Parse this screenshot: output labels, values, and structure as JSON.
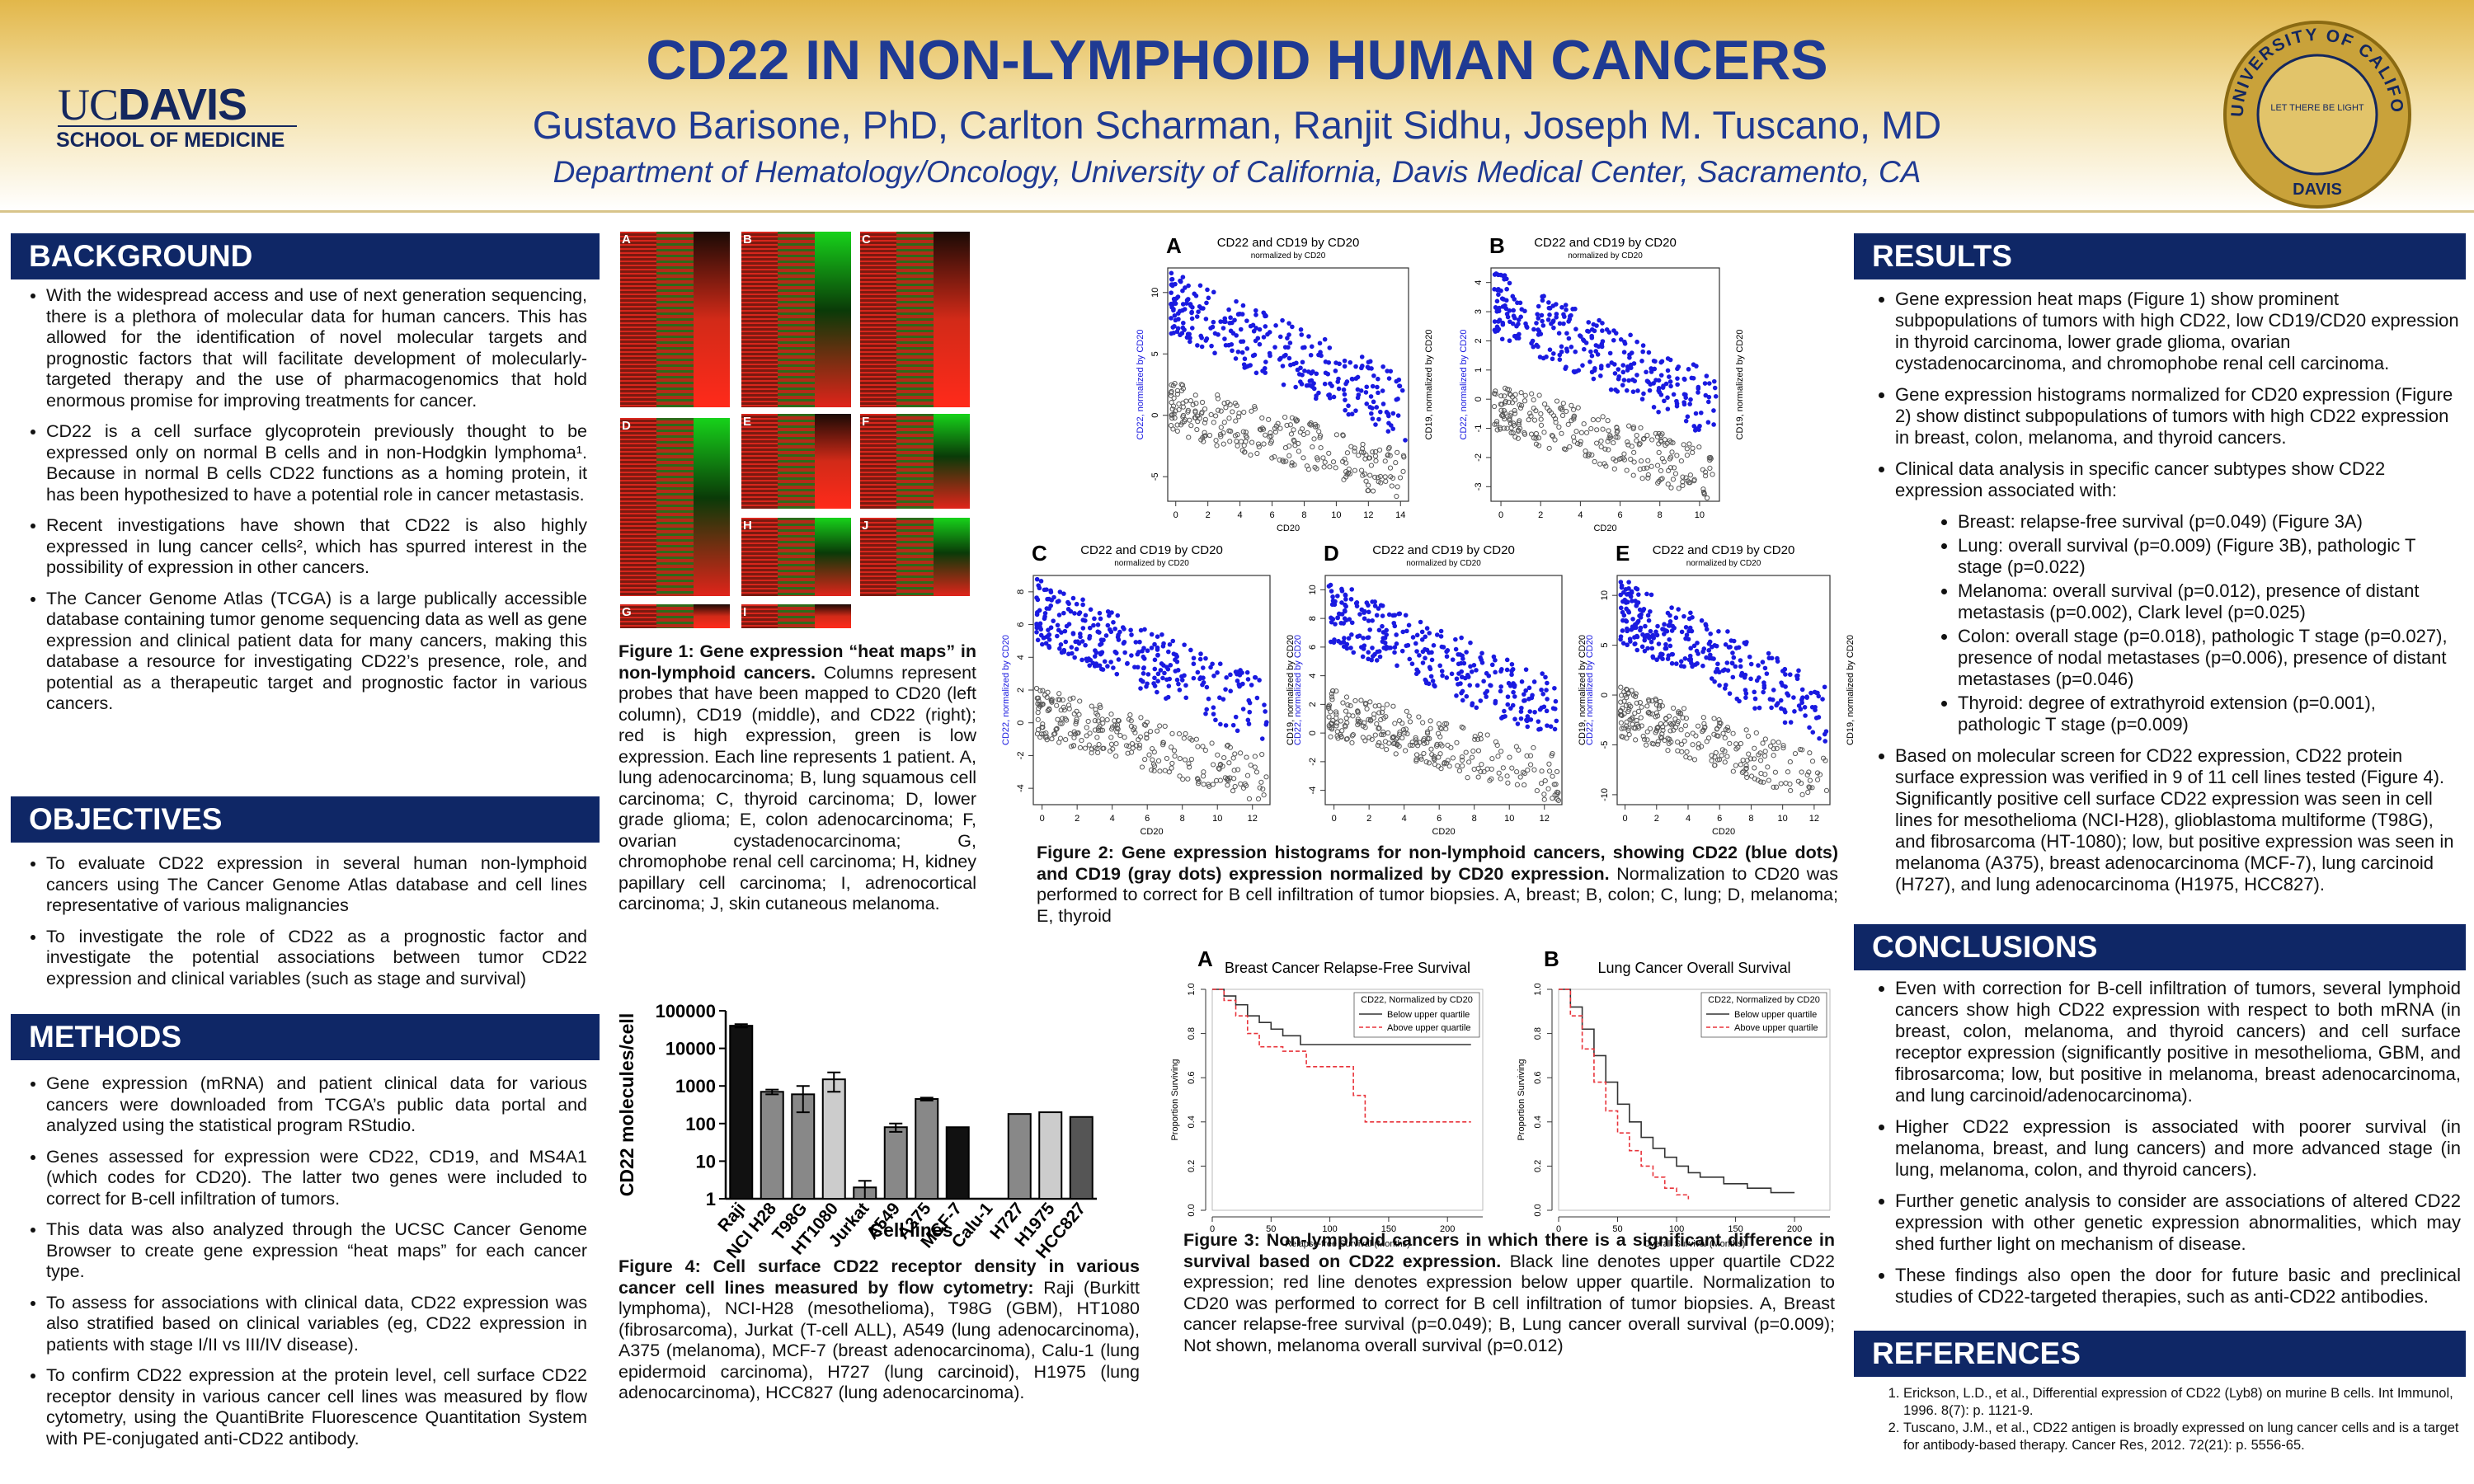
{
  "header": {
    "title": "CD22 IN NON-LYMPHOID HUMAN CANCERS",
    "authors": "Gustavo Barisone, PhD, Carlton Scharman, Ranjit Sidhu, Joseph M. Tuscano, MD",
    "department": "Department of Hematology/Oncology, University of California, Davis Medical Center, Sacramento, CA",
    "logo_uc": "UC",
    "logo_davis": "DAVIS",
    "logo_school": "SCHOOL OF MEDICINE",
    "seal_ring": "THE UNIVERSITY OF CALIFORNIA",
    "seal_motto": "LET THERE BE LIGHT",
    "seal_campus": "DAVIS"
  },
  "background": {
    "heading": "BACKGROUND",
    "bullets": [
      "With the widespread access and use of next generation sequencing, there is a plethora of molecular data for human cancers. This has allowed for the identification of novel molecular targets and prognostic factors that will facilitate development of molecularly-targeted therapy and the use of pharmacogenomics that  hold enormous promise for improving treatments for cancer.",
      "CD22 is a cell surface glycoprotein previously thought to be expressed only on normal B cells and in non-Hodgkin lymphoma¹. Because in normal B cells CD22 functions as a homing protein, it has been hypothesized to have a potential role in cancer metastasis.",
      "Recent investigations have shown that CD22 is also highly expressed in lung cancer cells², which has spurred interest in the possibility of expression in other cancers.",
      "The Cancer Genome Atlas (TCGA) is a large publically accessible database containing tumor genome sequencing data as well as gene expression and clinical patient data for many cancers, making this database a resource for investigating CD22’s presence, role, and potential as a therapeutic target and prognostic factor in various cancers."
    ]
  },
  "objectives": {
    "heading": "OBJECTIVES",
    "bullets": [
      "To evaluate CD22 expression in several human non-lymphoid cancers using The Cancer Genome Atlas database and cell lines representative of various malignancies",
      "To investigate the role of CD22 as a prognostic factor and investigate the potential associations between tumor CD22 expression and clinical variables (such as stage and survival)"
    ]
  },
  "methods": {
    "heading": "METHODS",
    "bullets": [
      "Gene expression (mRNA) and patient clinical data for various cancers were downloaded from TCGA’s public data portal and analyzed using the statistical program RStudio.",
      "Genes assessed for expression were CD22, CD19, and MS4A1 (which codes for CD20). The latter two genes were included to correct for B-cell infiltration of tumors.",
      "This data was also analyzed through the UCSC Cancer Genome Browser to create gene expression “heat maps” for each cancer type.",
      "To assess for associations with clinical data, CD22 expression was also stratified based on clinical variables (eg, CD22 expression in patients with stage I/II vs III/IV disease).",
      "To confirm CD22 expression at the protein level, cell surface CD22 receptor density in various cancer cell lines was measured by flow cytometry, using the QuantiBrite Fluorescence Quantitation System with PE-conjugated anti-CD22 antibody."
    ]
  },
  "results": {
    "heading": "RESULTS",
    "bullets": [
      "Gene expression heat maps (Figure 1) show prominent subpopulations of tumors with high CD22, low CD19/CD20 expression in thyroid carcinoma, lower grade glioma, ovarian cystadenocarcinoma, and chromophobe renal cell carcinoma.",
      "Gene expression histograms normalized for CD20 expression (Figure 2) show distinct subpopulations of tumors with high CD22 expression in breast, colon, melanoma, and thyroid cancers.",
      "Clinical data analysis in specific cancer subtypes show CD22 expression associated with:"
    ],
    "sub_bullets": [
      "Breast: relapse-free survival (p=0.049) (Figure 3A)",
      "Lung: overall survival (p=0.009) (Figure 3B), pathologic T stage (p=0.022)",
      "Melanoma: overall survival (p=0.012), presence of distant metastasis (p=0.002), Clark level (p=0.025)",
      "Colon: overall stage (p=0.018), pathologic T stage (p=0.027), presence of nodal metastases (p=0.006), presence of distant metastases (p=0.046)",
      "Thyroid: degree of extrathyroid extension (p=0.001), pathologic T stage (p=0.009)"
    ],
    "bullets_after": [
      "Based on molecular screen for CD22 expression, CD22 protein surface expression was verified in 9 of 11 cell lines tested (Figure 4). Significantly positive cell surface CD22 expression was seen in cell lines for mesothelioma (NCI-H28), glioblastoma multiforme (T98G), and fibrosarcoma (HT-1080); low, but positive expression was seen in melanoma (A375), breast adenocarcinoma (MCF-7), lung carcinoid (H727), and lung adenocarcinoma (H1975, HCC827)."
    ]
  },
  "conclusions": {
    "heading": "CONCLUSIONS",
    "bullets": [
      "Even with correction for B-cell infiltration of tumors, several lymphoid cancers show high CD22 expression with respect to both mRNA (in breast, colon, melanoma, and thyroid cancers) and cell surface receptor expression (significantly positive in mesothelioma, GBM, and fibrosarcoma; low, but positive in melanoma, breast adenocarcinoma, and lung carcinoid/adenocarcinoma).",
      "Higher CD22 expression is associated with poorer survival (in melanoma, breast, and lung cancers) and more advanced stage (in lung, melanoma, colon, and thyroid cancers).",
      "Further genetic analysis to consider are associations of altered CD22 expression with other genetic expression abnormalities, which may shed further light on mechanism of disease.",
      "These findings also open the door for future basic and preclinical studies of CD22-targeted therapies, such as anti-CD22 antibodies."
    ]
  },
  "references": {
    "heading": "REFERENCES",
    "items": [
      "Erickson, L.D., et al., Differential expression of CD22 (Lyb8) on murine B cells. Int Immunol, 1996. 8(7): p. 1121-9.",
      "Tuscano, J.M., et al., CD22 antigen is broadly expressed on lung cancer cells and is a target for antibody-based therapy. Cancer Res, 2012. 72(21): p. 5556-65."
    ]
  },
  "figure1": {
    "panels": [
      "A",
      "B",
      "C",
      "D",
      "E",
      "F",
      "G",
      "H",
      "I",
      "J"
    ],
    "caption_bold": "Figure 1: Gene expression “heat maps” in non-lymphoid cancers.",
    "caption": "Columns represent probes that have been mapped to CD20 (left column), CD19 (middle), and CD22 (right); red is high expression, green is low expression. Each line represents 1 patient. A, lung adenocarcinoma; B, lung squamous cell carcinoma; C, thyroid carcinoma; D, lower grade glioma; E, colon adenocarcinoma; F, ovarian cystadenocarcinoma; G, chromophobe renal cell carcinoma; H, kidney papillary cell carcinoma; I, adrenocortical carcinoma; J, skin cutaneous melanoma."
  },
  "figure2": {
    "plots": [
      {
        "panel": "A",
        "title": "CD22 and CD19 by CD20",
        "subtitle": "normalized by CD20",
        "xlabel": "CD20",
        "ylabel": "CD22, normalized by CD20",
        "y2label": "CD19, normalized by CD20",
        "xlim": [
          -0.5,
          14.5
        ],
        "xticks": [
          0,
          2,
          4,
          6,
          8,
          10,
          12,
          14
        ],
        "ylim": [
          -7,
          12
        ],
        "yticks": [
          -5,
          0,
          5,
          10
        ]
      },
      {
        "panel": "B",
        "title": "CD22 and CD19 by CD20",
        "subtitle": "normalized by CD20",
        "xlabel": "CD20",
        "ylabel": "CD22, normalized by CD20",
        "y2label": "CD19, normalized by CD20",
        "xlim": [
          -0.5,
          11
        ],
        "xticks": [
          0,
          2,
          4,
          6,
          8,
          10
        ],
        "ylim": [
          -3.5,
          4.5
        ],
        "yticks": [
          -3,
          -2,
          -1,
          0,
          1,
          2,
          3,
          4
        ]
      },
      {
        "panel": "C",
        "title": "CD22 and CD19 by CD20",
        "subtitle": "normalized by CD20",
        "xlabel": "CD20",
        "ylabel": "CD22, normalized by CD20",
        "y2label": "CD19, normalized by CD20",
        "xlim": [
          -0.5,
          13
        ],
        "xticks": [
          0,
          2,
          4,
          6,
          8,
          10,
          12
        ],
        "ylim": [
          -5,
          9
        ],
        "yticks": [
          -4,
          -2,
          0,
          2,
          4,
          6,
          8
        ]
      },
      {
        "panel": "D",
        "title": "CD22 and CD19 by CD20",
        "subtitle": "normalized by CD20",
        "xlabel": "CD20",
        "ylabel": "CD22, normalized by CD20",
        "y2label": "CD19, normalized by CD20",
        "xlim": [
          -0.5,
          13
        ],
        "xticks": [
          0,
          2,
          4,
          6,
          8,
          10,
          12
        ],
        "ylim": [
          -5,
          11
        ],
        "yticks": [
          -4,
          -2,
          0,
          2,
          4,
          6,
          8,
          10
        ]
      },
      {
        "panel": "E",
        "title": "CD22 and CD19 by CD20",
        "subtitle": "normalized by CD20",
        "xlabel": "CD20",
        "ylabel": "CD22, normalized by CD20",
        "y2label": "CD19, normalized by CD20",
        "xlim": [
          -0.5,
          13
        ],
        "xticks": [
          0,
          2,
          4,
          6,
          8,
          10,
          12
        ],
        "ylim": [
          -11,
          12
        ],
        "yticks": [
          -10,
          -5,
          0,
          5,
          10
        ]
      }
    ],
    "caption_bold": "Figure 2: Gene expression histograms for non-lymphoid cancers, showing CD22 (blue dots) and CD19 (gray dots) expression normalized by CD20 expression.",
    "caption": "Normalization to CD20 was performed to correct for B cell infiltration of tumor biopsies. A, breast; B, colon; C, lung; D, melanoma; E, thyroid"
  },
  "figure3": {
    "plots": [
      {
        "type": "line",
        "panel": "A",
        "title": "Breast Cancer Relapse-Free Survival",
        "legend_title": "CD22, Normalized by CD20",
        "xlabel": "Relapse-free Survival (Months)",
        "ylabel": "Proportion Surviving",
        "xlim": [
          0,
          230
        ],
        "xticks": [
          0,
          50,
          100,
          150,
          200
        ],
        "ylim": [
          0,
          1
        ],
        "yticks": [
          {
            "value": 0,
            "label": "0.0"
          },
          0.2,
          0.4,
          0.6,
          0.8,
          {
            "value": 1,
            "label": "1.0"
          }
        ],
        "series": [
          {
            "name": "Below upper quartile",
            "color": "#333333",
            "dash": false,
            "x": [
              0,
              10,
              20,
              30,
              40,
              50,
              60,
              75,
              100,
              150,
              220
            ],
            "values": [
              1,
              0.97,
              0.93,
              0.88,
              0.85,
              0.82,
              0.79,
              0.75,
              0.75,
              0.75,
              0.75
            ]
          },
          {
            "name": "Above upper quartile",
            "color": "#e8333a",
            "dash": true,
            "x": [
              0,
              10,
              20,
              30,
              40,
              60,
              80,
              110,
              120,
              130,
              220
            ],
            "values": [
              1,
              0.95,
              0.88,
              0.8,
              0.74,
              0.72,
              0.65,
              0.65,
              0.52,
              0.4,
              0.4
            ]
          }
        ]
      },
      {
        "type": "line",
        "panel": "B",
        "title": "Lung Cancer Overall Survival",
        "legend_title": "CD22, Normalized by CD20",
        "xlabel": "Overall Survival (Months)",
        "ylabel": "Proportion Surviving",
        "xlim": [
          0,
          230
        ],
        "xticks": [
          0,
          50,
          100,
          150,
          200
        ],
        "ylim": [
          0,
          1
        ],
        "yticks": [
          {
            "value": 0,
            "label": "0.0"
          },
          0.2,
          0.4,
          0.6,
          0.8,
          {
            "value": 1,
            "label": "1.0"
          }
        ],
        "series": [
          {
            "name": "Below upper quartile",
            "color": "#333333",
            "dash": false,
            "x": [
              0,
              10,
              20,
              30,
              40,
              50,
              60,
              70,
              80,
              90,
              100,
              110,
              120,
              140,
              160,
              180,
              200
            ],
            "values": [
              1,
              0.92,
              0.82,
              0.7,
              0.58,
              0.48,
              0.4,
              0.33,
              0.28,
              0.24,
              0.2,
              0.17,
              0.15,
              0.12,
              0.1,
              0.08,
              0.08
            ]
          },
          {
            "name": "Above upper quartile",
            "color": "#e8333a",
            "dash": true,
            "x": [
              0,
              10,
              20,
              30,
              40,
              50,
              60,
              70,
              80,
              90,
              100,
              110
            ],
            "values": [
              1,
              0.88,
              0.73,
              0.58,
              0.45,
              0.35,
              0.27,
              0.2,
              0.15,
              0.1,
              0.07,
              0.05
            ]
          }
        ]
      }
    ],
    "caption_bold": "Figure 3: Non-lymphoid cancers in which there is a significant difference in survival based on CD22 expression.",
    "caption": "Black line denotes upper quartile CD22 expression; red line denotes expression below upper quartile. Normalization to CD20 was performed to correct for B cell infiltration of tumor biopsies. A, Breast cancer relapse-free survival (p=0.049); B, Lung cancer overall survival (p=0.009); Not shown, melanoma overall survival (p=0.012)"
  },
  "figure4": {
    "type": "bar",
    "ylabel": "CD22 molecules/cell",
    "xlabel": "Cell lines",
    "log_scale": true,
    "ylim": [
      1,
      100000
    ],
    "yticks": [
      1,
      10,
      100,
      1000,
      10000,
      100000
    ],
    "categories": [
      "Raji",
      "NCI H28",
      "T98G",
      "HT1080",
      "Jurkat",
      "A549",
      "A375",
      "MCF-7",
      "Calu-1",
      "H727",
      "H1975",
      "HCC827"
    ],
    "values": [
      40000,
      700,
      600,
      1500,
      2,
      80,
      450,
      80,
      null,
      180,
      200,
      150
    ],
    "errors": [
      4000,
      100,
      400,
      800,
      1,
      20,
      40,
      null,
      null,
      null,
      null,
      null
    ],
    "colors": [
      "#111111",
      "#888888",
      "#888888",
      "#cccccc",
      "#888888",
      "#888888",
      "#888888",
      "#111111",
      "#888888",
      "#888888",
      "#cccccc",
      "#555555"
    ],
    "caption_bold": "Figure 4: Cell surface CD22 receptor density in various cancer cell lines measured by flow cytometry:",
    "caption": "Raji (Burkitt lymphoma), NCI-H28 (mesothelioma), T98G (GBM), HT1080 (fibrosarcoma), Jurkat (T-cell ALL), A549 (lung adenocarcinoma), A375 (melanoma), MCF-7 (breast adenocarcinoma), Calu-1 (lung epidermoid carcinoma), H727 (lung carcinoid), H1975 (lung adenocarcinoma), HCC827 (lung adenocarcinoma)."
  }
}
